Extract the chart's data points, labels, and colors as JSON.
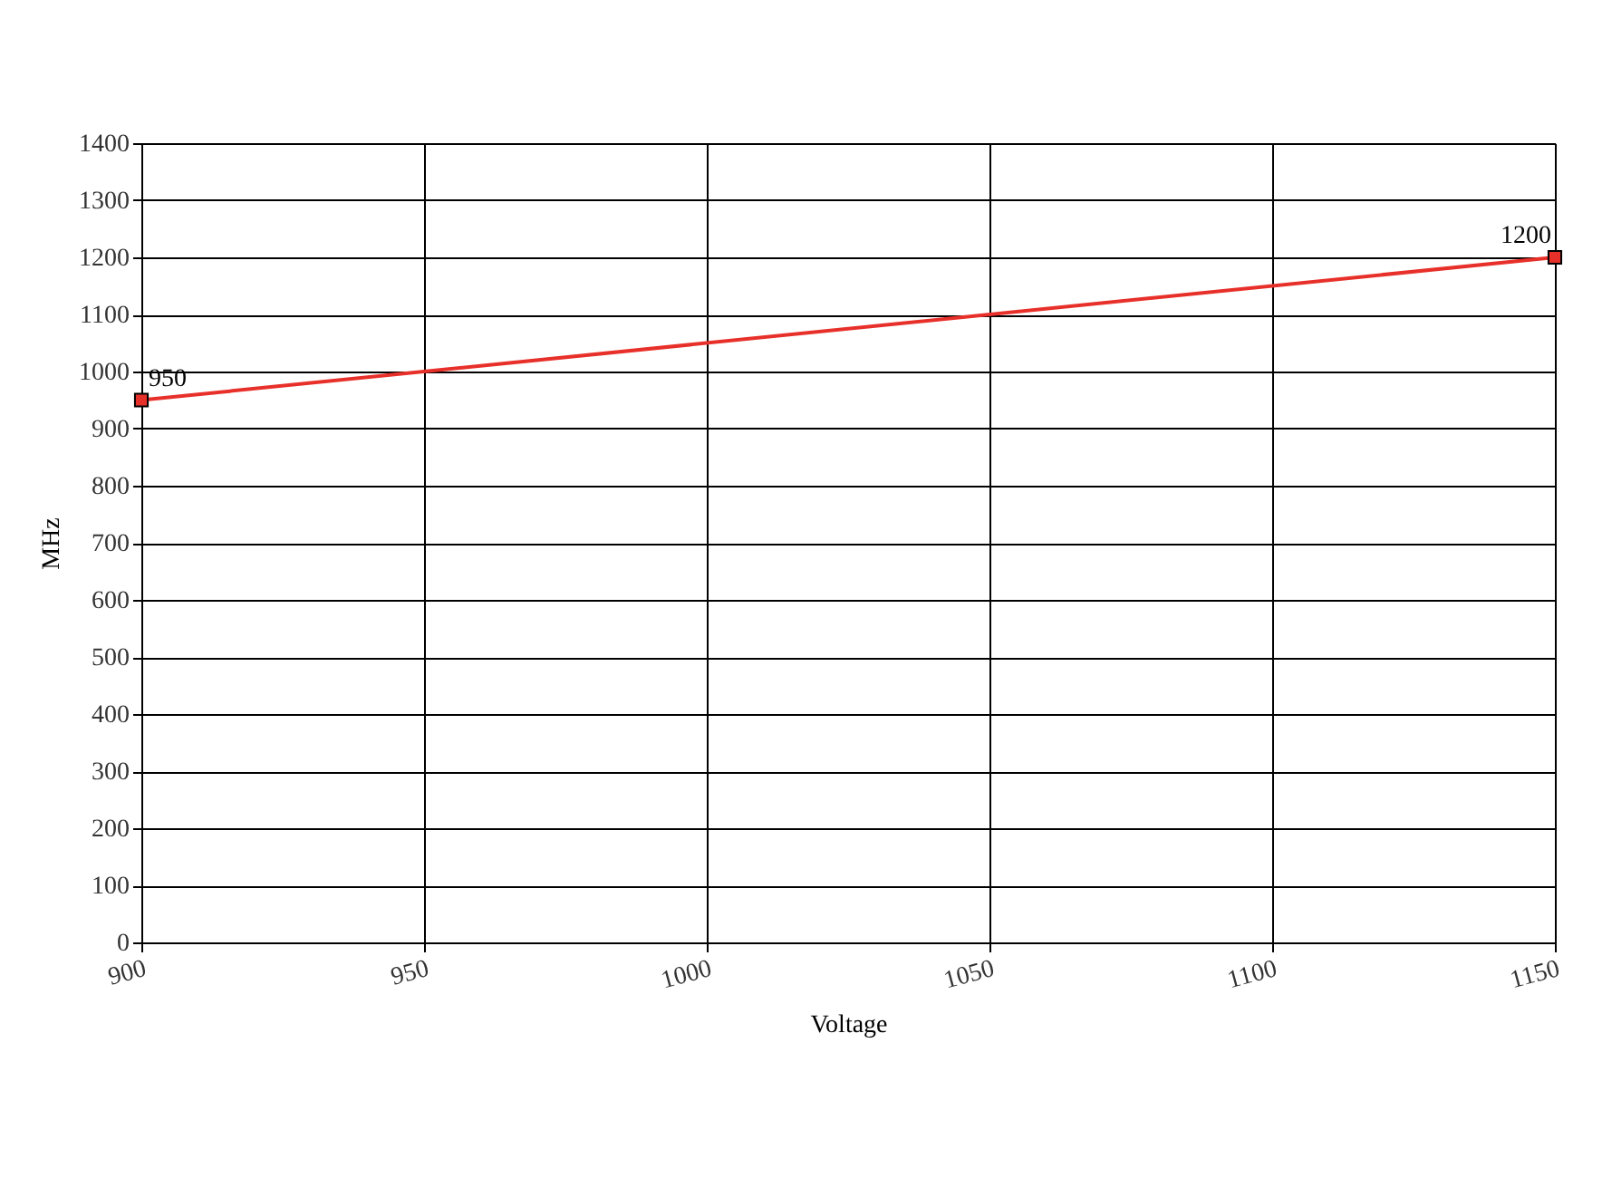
{
  "chart_data": {
    "type": "line",
    "xlabel": "Voltage",
    "ylabel": "MHz",
    "x": [
      900,
      1150
    ],
    "series": [
      {
        "color": "#e8302a",
        "values": [
          950,
          1200
        ]
      }
    ],
    "xlim": [
      900,
      1150
    ],
    "xticks": [
      900,
      950,
      1000,
      1050,
      1100,
      1150
    ],
    "ylim": [
      0,
      1400
    ],
    "yticks": [
      0,
      100,
      200,
      300,
      400,
      500,
      600,
      700,
      800,
      900,
      1000,
      1100,
      1200,
      1300,
      1400
    ],
    "grid": true,
    "marker": "square",
    "line_style": "solid",
    "data_labels": true
  }
}
